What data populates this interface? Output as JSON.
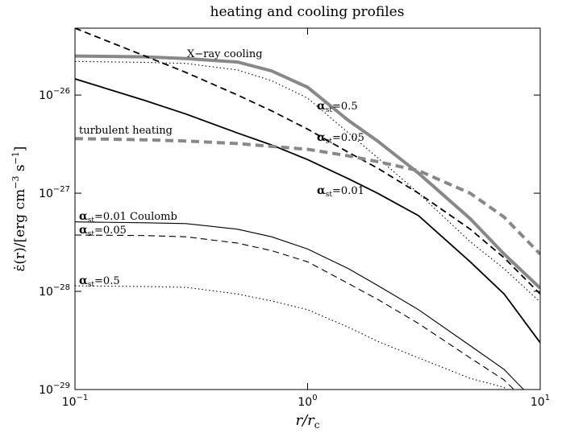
{
  "chart_data": {
    "type": "line",
    "title": "heating and cooling profiles",
    "xlabel": "r/rc",
    "ylabel": "ε̇(r)/[erg cm−3 s−1]",
    "xscale": "log",
    "yscale": "log",
    "xlim": [
      0.1,
      10
    ],
    "ylim": [
      1e-29,
      4.8e-26
    ],
    "xticks": [
      {
        "value": 0.1,
        "label": "10−1"
      },
      {
        "value": 1,
        "label": "100"
      },
      {
        "value": 10,
        "label": "101"
      }
    ],
    "yticks": [
      {
        "value": 1e-29,
        "label": "10−29"
      },
      {
        "value": 1e-28,
        "label": "10−28"
      },
      {
        "value": 1e-27,
        "label": "10−27"
      },
      {
        "value": 1e-26,
        "label": "10−26"
      }
    ],
    "x": [
      0.1,
      0.2,
      0.3,
      0.5,
      0.7,
      1,
      1.5,
      2,
      3,
      5,
      7,
      10
    ],
    "series": [
      {
        "name": "X−ray cooling",
        "color": "#888888",
        "dash": "solid",
        "weight": "thick",
        "values": [
          2.5e-26,
          2.45e-26,
          2.35e-26,
          2.17e-26,
          1.76e-26,
          1.2e-26,
          5.5e-27,
          3.4e-27,
          1.6e-27,
          5.5e-28,
          2.4e-28,
          1.08e-28
        ]
      },
      {
        "name": "αst=0.5",
        "color": "#000000",
        "dash": "dotted",
        "weight": "thin",
        "values": [
          2.2e-26,
          2.15e-26,
          2.1e-26,
          1.8e-26,
          1.4e-26,
          9.3e-27,
          4.1e-27,
          2.3e-27,
          1e-27,
          3.2e-28,
          1.7e-28,
          7.8e-29
        ]
      },
      {
        "name": "αst=0.05",
        "color": "#000000",
        "dash": "dashed",
        "weight": "thick",
        "values": [
          4.8e-26,
          2.5e-26,
          1.7e-26,
          1e-26,
          6.9e-27,
          4.5e-27,
          2.6e-27,
          1.8e-27,
          1e-27,
          4.3e-28,
          2.2e-28,
          9.4e-29
        ]
      },
      {
        "name": "αst=0.01",
        "color": "#000000",
        "dash": "solid",
        "weight": "thick",
        "values": [
          1.46e-26,
          8.8e-27,
          6.4e-27,
          4.1e-27,
          3.1e-27,
          2.2e-27,
          1.4e-27,
          1e-27,
          5.9e-28,
          2e-28,
          9.4e-29,
          3e-29
        ]
      },
      {
        "name": "turbulent heating",
        "color": "#888888",
        "dash": "dashed",
        "weight": "thick",
        "values": [
          3.6e-27,
          3.5e-27,
          3.4e-27,
          3.2e-27,
          3e-27,
          2.8e-27,
          2.4e-27,
          2.1e-27,
          1.7e-27,
          1e-27,
          5.7e-28,
          2.4e-28
        ]
      },
      {
        "name": "αst=0.01 Coulomb",
        "color": "#000000",
        "dash": "solid",
        "weight": "thin",
        "values": [
          5.1e-28,
          5e-28,
          4.9e-28,
          4.3e-28,
          3.6e-28,
          2.7e-28,
          1.7e-28,
          1.15e-28,
          6.5e-29,
          2.8e-29,
          1.6e-29,
          6.7e-30
        ]
      },
      {
        "name": "αst=0.05",
        "color": "#000000",
        "dash": "dashed",
        "weight": "thin",
        "values": [
          3.75e-28,
          3.7e-28,
          3.6e-28,
          3.1e-28,
          2.6e-28,
          2e-28,
          1.2e-28,
          8.3e-29,
          4.7e-29,
          2.1e-29,
          1.25e-29,
          5.5e-30
        ]
      },
      {
        "name": "αst=0.5",
        "color": "#000000",
        "dash": "dotted",
        "weight": "thin",
        "values": [
          1.14e-28,
          1.12e-28,
          1.1e-28,
          9.4e-29,
          8e-29,
          6.5e-29,
          4.3e-29,
          3.1e-29,
          2.1e-29,
          1.3e-29,
          1.05e-29,
          4e-30
        ]
      }
    ]
  }
}
